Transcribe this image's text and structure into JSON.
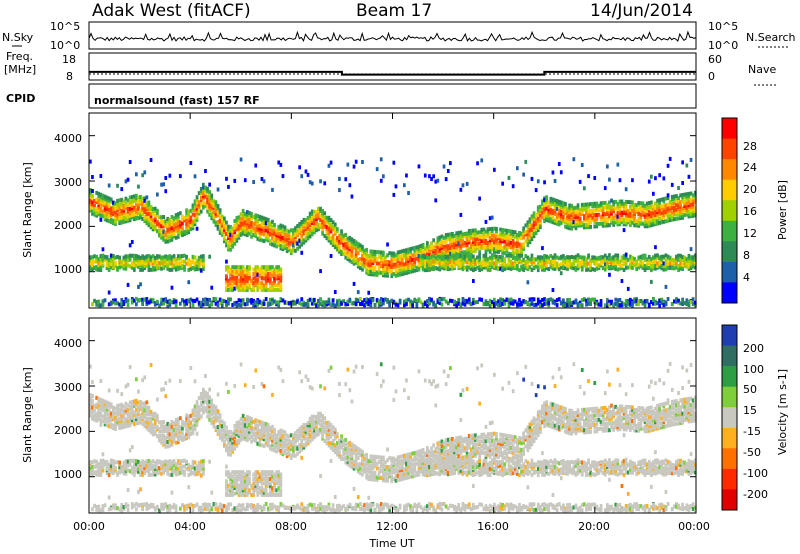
{
  "header": {
    "site": "Adak West (fitACF)",
    "beam": "Beam 17",
    "date": "14/Jun/2014"
  },
  "noise_panel": {
    "left_label": "N.Sky",
    "right_label": "N.Search",
    "ytick_top_left": "10^5",
    "ytick_bottom_left": "10^0",
    "ytick_top_right": "10^5",
    "ytick_bottom_right": "10^0"
  },
  "freq_panel": {
    "left_label_1": "Freq.",
    "left_label_2": "[MHz]",
    "right_label": "Nave",
    "left_ticks": [
      "18",
      "8"
    ],
    "right_ticks": [
      "60",
      "0"
    ]
  },
  "cpid_panel": {
    "left_label": "CPID",
    "text": "normalsound (fast) 157 RF"
  },
  "power_panel": {
    "ylabel": "Slant Range [km]",
    "yticks": [
      "4000",
      "3000",
      "2000",
      "1000"
    ],
    "cbar_label": "Power [dB]",
    "cbar_ticks": [
      "28",
      "24",
      "20",
      "16",
      "12",
      "8",
      "4"
    ],
    "cbar_colors": [
      "#ff0000",
      "#ff4400",
      "#ff8800",
      "#ffcc00",
      "#a0d000",
      "#3cb040",
      "#2e8b57",
      "#1e5faa",
      "#0000ff"
    ]
  },
  "velocity_panel": {
    "ylabel": "Slant Range [km]",
    "yticks": [
      "4000",
      "3000",
      "2000",
      "1000"
    ],
    "cbar_label": "Velocity [m s-1]",
    "cbar_ticks": [
      "200",
      "100",
      "50",
      "15",
      "-15",
      "-50",
      "-100",
      "-200"
    ],
    "cbar_colors": [
      "#1f3fb0",
      "#2f6e60",
      "#2e9e45",
      "#7ecf3a",
      "#c8c8c0",
      "#ffb020",
      "#ff7000",
      "#ff2a00",
      "#e00000"
    ]
  },
  "xaxis": {
    "label": "Time UT",
    "ticks": [
      "00:00",
      "04:00",
      "08:00",
      "12:00",
      "16:00",
      "20:00",
      "00:00"
    ]
  },
  "chart_data": [
    {
      "type": "line",
      "title": "Adak West (fitACF) Beam 17 14/Jun/2014",
      "xlabel": "Time UT",
      "ylabel": "Freq. [MHz]",
      "ylim": [
        8,
        18
      ],
      "series": [
        {
          "name": "Freq.",
          "x": [
            0,
            10,
            10,
            18,
            18,
            24
          ],
          "values": [
            11,
            11,
            10,
            10,
            11,
            11
          ]
        }
      ]
    },
    {
      "type": "heatmap",
      "ylabel": "Slant Range [km]",
      "xlabel": "Time UT",
      "ylim": [
        200,
        4500
      ],
      "colorbar": "Power [dB]",
      "ridges": [
        {
          "x": [
            0,
            1,
            2,
            3,
            4,
            4.5,
            5,
            5.5,
            6,
            7,
            8,
            9,
            10,
            11,
            12,
            13,
            14,
            15,
            16,
            17,
            18,
            19,
            20,
            21,
            22,
            23,
            24
          ],
          "values": [
            2550,
            2300,
            2450,
            1900,
            2150,
            2700,
            2250,
            1700,
            2100,
            1900,
            1650,
            2200,
            1600,
            1200,
            1150,
            1300,
            1550,
            1650,
            1700,
            1600,
            2400,
            2200,
            2250,
            2300,
            2250,
            2400,
            2500
          ]
        }
      ]
    },
    {
      "type": "heatmap",
      "ylabel": "Slant Range [km]",
      "xlabel": "Time UT",
      "ylim": [
        200,
        4500
      ],
      "colorbar": "Velocity [m s-1]"
    }
  ]
}
